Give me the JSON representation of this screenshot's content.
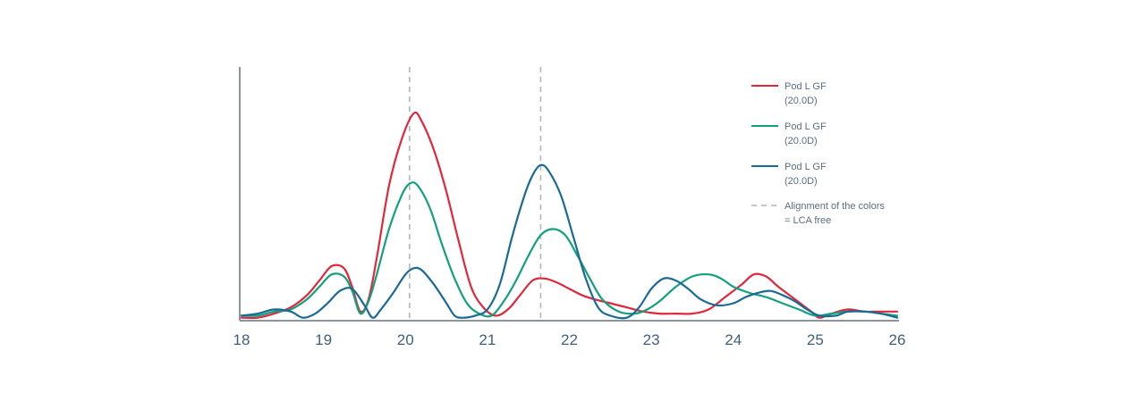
{
  "chart_data": {
    "type": "line",
    "title": "",
    "xlabel": "",
    "ylabel": "",
    "xlim": [
      18,
      26
    ],
    "ylim": [
      0,
      100
    ],
    "x_ticks": [
      "18",
      "19",
      "20",
      "21",
      "22",
      "23",
      "24",
      "25",
      "26"
    ],
    "reference_lines": [
      20.05,
      21.65
    ],
    "series": [
      {
        "color": "#e0283c",
        "points": [
          [
            18.0,
            1
          ],
          [
            18.2,
            1
          ],
          [
            18.4,
            3
          ],
          [
            18.6,
            6
          ],
          [
            18.8,
            12
          ],
          [
            18.95,
            19
          ],
          [
            19.1,
            26
          ],
          [
            19.25,
            25
          ],
          [
            19.35,
            16
          ],
          [
            19.45,
            4
          ],
          [
            19.55,
            10
          ],
          [
            19.65,
            30
          ],
          [
            19.8,
            65
          ],
          [
            19.95,
            87
          ],
          [
            20.1,
            100
          ],
          [
            20.2,
            96
          ],
          [
            20.35,
            82
          ],
          [
            20.5,
            62
          ],
          [
            20.65,
            38
          ],
          [
            20.8,
            16
          ],
          [
            20.95,
            6
          ],
          [
            21.1,
            2
          ],
          [
            21.25,
            5
          ],
          [
            21.4,
            12
          ],
          [
            21.55,
            19
          ],
          [
            21.7,
            20
          ],
          [
            21.85,
            18
          ],
          [
            22.0,
            15
          ],
          [
            22.15,
            12
          ],
          [
            22.3,
            10
          ],
          [
            22.5,
            8
          ],
          [
            22.7,
            6
          ],
          [
            22.9,
            4
          ],
          [
            23.1,
            3
          ],
          [
            23.3,
            3
          ],
          [
            23.5,
            3
          ],
          [
            23.7,
            5
          ],
          [
            23.9,
            11
          ],
          [
            24.1,
            17
          ],
          [
            24.25,
            22
          ],
          [
            24.4,
            21
          ],
          [
            24.55,
            16
          ],
          [
            24.75,
            10
          ],
          [
            24.95,
            4
          ],
          [
            25.05,
            1
          ],
          [
            25.2,
            3
          ],
          [
            25.4,
            5
          ],
          [
            25.6,
            4
          ],
          [
            25.8,
            4
          ],
          [
            26.0,
            4
          ]
        ]
      },
      {
        "color": "#13a07d",
        "points": [
          [
            18.0,
            2
          ],
          [
            18.2,
            2
          ],
          [
            18.4,
            4
          ],
          [
            18.6,
            5
          ],
          [
            18.8,
            10
          ],
          [
            18.95,
            16
          ],
          [
            19.1,
            22
          ],
          [
            19.25,
            21
          ],
          [
            19.35,
            14
          ],
          [
            19.45,
            3
          ],
          [
            19.55,
            9
          ],
          [
            19.65,
            22
          ],
          [
            19.8,
            44
          ],
          [
            19.95,
            60
          ],
          [
            20.05,
            66
          ],
          [
            20.15,
            65
          ],
          [
            20.3,
            54
          ],
          [
            20.45,
            36
          ],
          [
            20.6,
            20
          ],
          [
            20.75,
            8
          ],
          [
            20.9,
            3
          ],
          [
            21.05,
            2
          ],
          [
            21.2,
            9
          ],
          [
            21.35,
            19
          ],
          [
            21.5,
            31
          ],
          [
            21.65,
            41
          ],
          [
            21.8,
            44
          ],
          [
            21.95,
            41
          ],
          [
            22.1,
            31
          ],
          [
            22.25,
            20
          ],
          [
            22.4,
            10
          ],
          [
            22.6,
            4
          ],
          [
            22.8,
            3
          ],
          [
            22.95,
            5
          ],
          [
            23.1,
            9
          ],
          [
            23.3,
            16
          ],
          [
            23.5,
            21
          ],
          [
            23.7,
            22
          ],
          [
            23.85,
            20
          ],
          [
            24.0,
            16
          ],
          [
            24.2,
            13
          ],
          [
            24.4,
            11
          ],
          [
            24.6,
            8
          ],
          [
            24.8,
            5
          ],
          [
            25.0,
            2
          ],
          [
            25.2,
            3
          ],
          [
            25.4,
            4
          ],
          [
            25.6,
            4
          ],
          [
            25.8,
            3
          ],
          [
            26.0,
            2
          ]
        ]
      },
      {
        "color": "#1a6a96",
        "points": [
          [
            18.0,
            2
          ],
          [
            18.2,
            3
          ],
          [
            18.4,
            5
          ],
          [
            18.6,
            4
          ],
          [
            18.75,
            1
          ],
          [
            18.9,
            3
          ],
          [
            19.05,
            8
          ],
          [
            19.2,
            14
          ],
          [
            19.35,
            15
          ],
          [
            19.5,
            7
          ],
          [
            19.6,
            1
          ],
          [
            19.7,
            5
          ],
          [
            19.85,
            13
          ],
          [
            20.0,
            22
          ],
          [
            20.1,
            25
          ],
          [
            20.2,
            24
          ],
          [
            20.35,
            17
          ],
          [
            20.5,
            8
          ],
          [
            20.6,
            2
          ],
          [
            20.7,
            1
          ],
          [
            20.85,
            2
          ],
          [
            21.0,
            5
          ],
          [
            21.15,
            17
          ],
          [
            21.3,
            40
          ],
          [
            21.45,
            60
          ],
          [
            21.55,
            70
          ],
          [
            21.65,
            75
          ],
          [
            21.75,
            72
          ],
          [
            21.9,
            60
          ],
          [
            22.05,
            40
          ],
          [
            22.2,
            20
          ],
          [
            22.35,
            6
          ],
          [
            22.5,
            2
          ],
          [
            22.7,
            1
          ],
          [
            22.85,
            6
          ],
          [
            23.0,
            15
          ],
          [
            23.15,
            20
          ],
          [
            23.3,
            19
          ],
          [
            23.45,
            15
          ],
          [
            23.6,
            10
          ],
          [
            23.8,
            7
          ],
          [
            24.0,
            8
          ],
          [
            24.15,
            11
          ],
          [
            24.3,
            13
          ],
          [
            24.45,
            14
          ],
          [
            24.6,
            12
          ],
          [
            24.75,
            9
          ],
          [
            24.9,
            5
          ],
          [
            25.05,
            2
          ],
          [
            25.25,
            2
          ],
          [
            25.4,
            4
          ],
          [
            25.6,
            4
          ],
          [
            25.8,
            3
          ],
          [
            26.0,
            1
          ]
        ]
      }
    ],
    "legend": {
      "placement": "top-right",
      "entries": [
        {
          "label_lines": [
            "Pod L GF",
            "(20.0D)"
          ],
          "color": "#e0283c",
          "style": "solid"
        },
        {
          "label_lines": [
            "Pod L GF",
            "(20.0D)"
          ],
          "color": "#13a07d",
          "style": "solid"
        },
        {
          "label_lines": [
            "Pod L GF",
            "(20.0D)"
          ],
          "color": "#1a6a96",
          "style": "solid"
        },
        {
          "label_lines": [
            "Alignment of the colors",
            "= LCA free"
          ],
          "color": "#b0b6bb",
          "style": "dashed"
        }
      ]
    },
    "colors": {
      "axis": "#8c959e",
      "reference_line": "#b0b6bb",
      "tick_label": "#3f5f7a",
      "legend_text": "#5a6e80"
    }
  }
}
